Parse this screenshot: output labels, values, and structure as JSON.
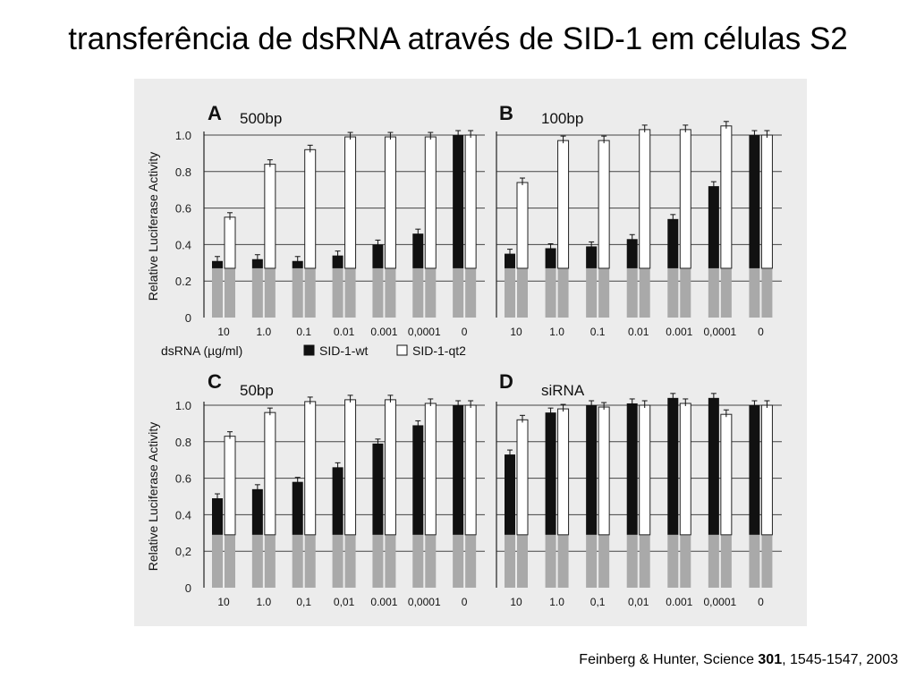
{
  "slide": {
    "title": "transferência de dsRNA através de SID-1 em células S2",
    "citation": {
      "pre": "Feinberg & Hunter, Science ",
      "bold": "301",
      "post": ", 1545-1547, 2003"
    }
  },
  "legend": {
    "xlabel": "dsRNA (µg/ml)",
    "entries": [
      {
        "name": "SID-1-wt",
        "color": "#111111"
      },
      {
        "name": "SID-1-qt2",
        "color": "#ffffff"
      }
    ]
  },
  "colors": {
    "wt": "#111111",
    "qt2": "#ffffff",
    "baseline": "#a9a9a9",
    "grid": "#444444",
    "background": "#ececec"
  },
  "chart_data": [
    {
      "type": "bar",
      "panel": "A",
      "title": "500bp",
      "ylabel": "Relative Luciferase Activity",
      "ylim": [
        0,
        1.0
      ],
      "yticks": [
        "0",
        "0.2",
        "0.4",
        "0.6",
        "0.8",
        "1.0"
      ],
      "categories": [
        "10",
        "1.0",
        "0.1",
        "0.01",
        "0.001",
        "0,0001",
        "0"
      ],
      "series": [
        {
          "name": "SID-1-wt",
          "values": [
            0.31,
            0.32,
            0.31,
            0.34,
            0.4,
            0.46,
            1.0
          ]
        },
        {
          "name": "SID-1-qt2",
          "values": [
            0.55,
            0.84,
            0.92,
            0.99,
            0.99,
            0.99,
            1.0
          ]
        }
      ],
      "baseline": [
        0.27,
        0.27,
        0.27,
        0.27,
        0.27,
        0.27,
        0.27
      ]
    },
    {
      "type": "bar",
      "panel": "B",
      "title": "100bp",
      "ylabel": "",
      "ylim": [
        0,
        1.0
      ],
      "yticks": [
        "0",
        "0.2",
        "0.4",
        "0.6",
        "0.8",
        "1.0"
      ],
      "categories": [
        "10",
        "1.0",
        "0.1",
        "0.01",
        "0.001",
        "0,0001",
        "0"
      ],
      "series": [
        {
          "name": "SID-1-wt",
          "values": [
            0.35,
            0.38,
            0.39,
            0.43,
            0.54,
            0.72,
            1.0
          ]
        },
        {
          "name": "SID-1-qt2",
          "values": [
            0.74,
            0.97,
            0.97,
            1.03,
            1.03,
            1.05,
            1.0
          ]
        }
      ],
      "baseline": [
        0.27,
        0.27,
        0.27,
        0.27,
        0.27,
        0.27,
        0.27
      ]
    },
    {
      "type": "bar",
      "panel": "C",
      "title": "50bp",
      "ylabel": "Relative Luciferase Activity",
      "ylim": [
        0,
        1.0
      ],
      "yticks": [
        "0",
        "0,2",
        "0.4",
        "0.6",
        "0.8",
        "1.0"
      ],
      "categories": [
        "10",
        "1.0",
        "0,1",
        "0,01",
        "0.001",
        "0,0001",
        "0"
      ],
      "series": [
        {
          "name": "SID-1-wt",
          "values": [
            0.49,
            0.54,
            0.58,
            0.66,
            0.79,
            0.89,
            1.0
          ]
        },
        {
          "name": "SID-1-qt2",
          "values": [
            0.83,
            0.96,
            1.02,
            1.03,
            1.03,
            1.01,
            1.0
          ]
        }
      ],
      "baseline": [
        0.29,
        0.29,
        0.29,
        0.29,
        0.29,
        0.29,
        0.29
      ]
    },
    {
      "type": "bar",
      "panel": "D",
      "title": "siRNA",
      "ylabel": "",
      "ylim": [
        0,
        1.0
      ],
      "yticks": [
        "0",
        "0,2",
        "0.4",
        "0.6",
        "0.8",
        "1.0"
      ],
      "categories": [
        "10",
        "1.0",
        "0,1",
        "0,01",
        "0.001",
        "0,0001",
        "0"
      ],
      "series": [
        {
          "name": "SID-1-wt",
          "values": [
            0.73,
            0.96,
            1.0,
            1.01,
            1.04,
            1.04,
            1.0
          ]
        },
        {
          "name": "SID-1-qt2",
          "values": [
            0.92,
            0.98,
            0.99,
            1.0,
            1.01,
            0.95,
            1.0
          ]
        }
      ],
      "baseline": [
        0.29,
        0.29,
        0.29,
        0.29,
        0.29,
        0.29,
        0.29
      ]
    }
  ]
}
